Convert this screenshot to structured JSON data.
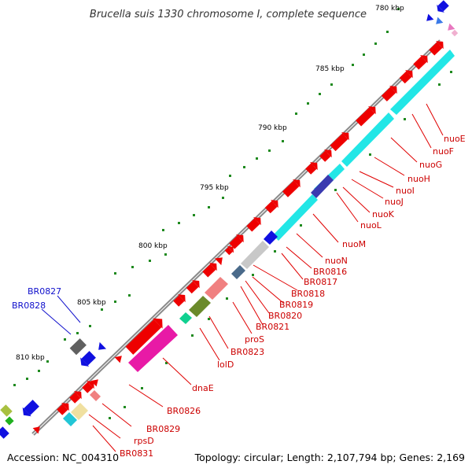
{
  "title": "Brucella suis 1330 chromosome I, complete sequence",
  "footer": {
    "accession": "Accession: NC_004310",
    "summary": "Topology: circular; Length: 2,107,794 bp; Genes: 2,169"
  },
  "colors": {
    "backbone": "#8c8c8c",
    "gene_forward": "#ee0000",
    "tick": "#1f8a1f",
    "forward_label": "#cc0000",
    "reverse_label": "#0000cc",
    "cog_cyan": "#22e6e6",
    "cog_magenta": "#e81aa6",
    "cog_blue": "#1010e0"
  },
  "tick_labels": [
    "780 kbp",
    "785 kbp",
    "790 kbp",
    "795 kbp",
    "800 kbp",
    "805 kbp",
    "810 kbp"
  ],
  "gene_labels_forward": [
    "nuoE",
    "nuoF",
    "nuoG",
    "nuoH",
    "nuoI",
    "nuoJ",
    "nuoK",
    "nuoL",
    "nuoM",
    "nuoN",
    "BR0816",
    "BR0817",
    "BR0818",
    "BR0819",
    "BR0820",
    "BR0821",
    "proS",
    "BR0823",
    "lolD",
    "dnaE",
    "BR0826",
    "BR0829",
    "rpsD",
    "BR0831"
  ],
  "gene_labels_reverse": [
    "BR0827",
    "BR0828"
  ]
}
